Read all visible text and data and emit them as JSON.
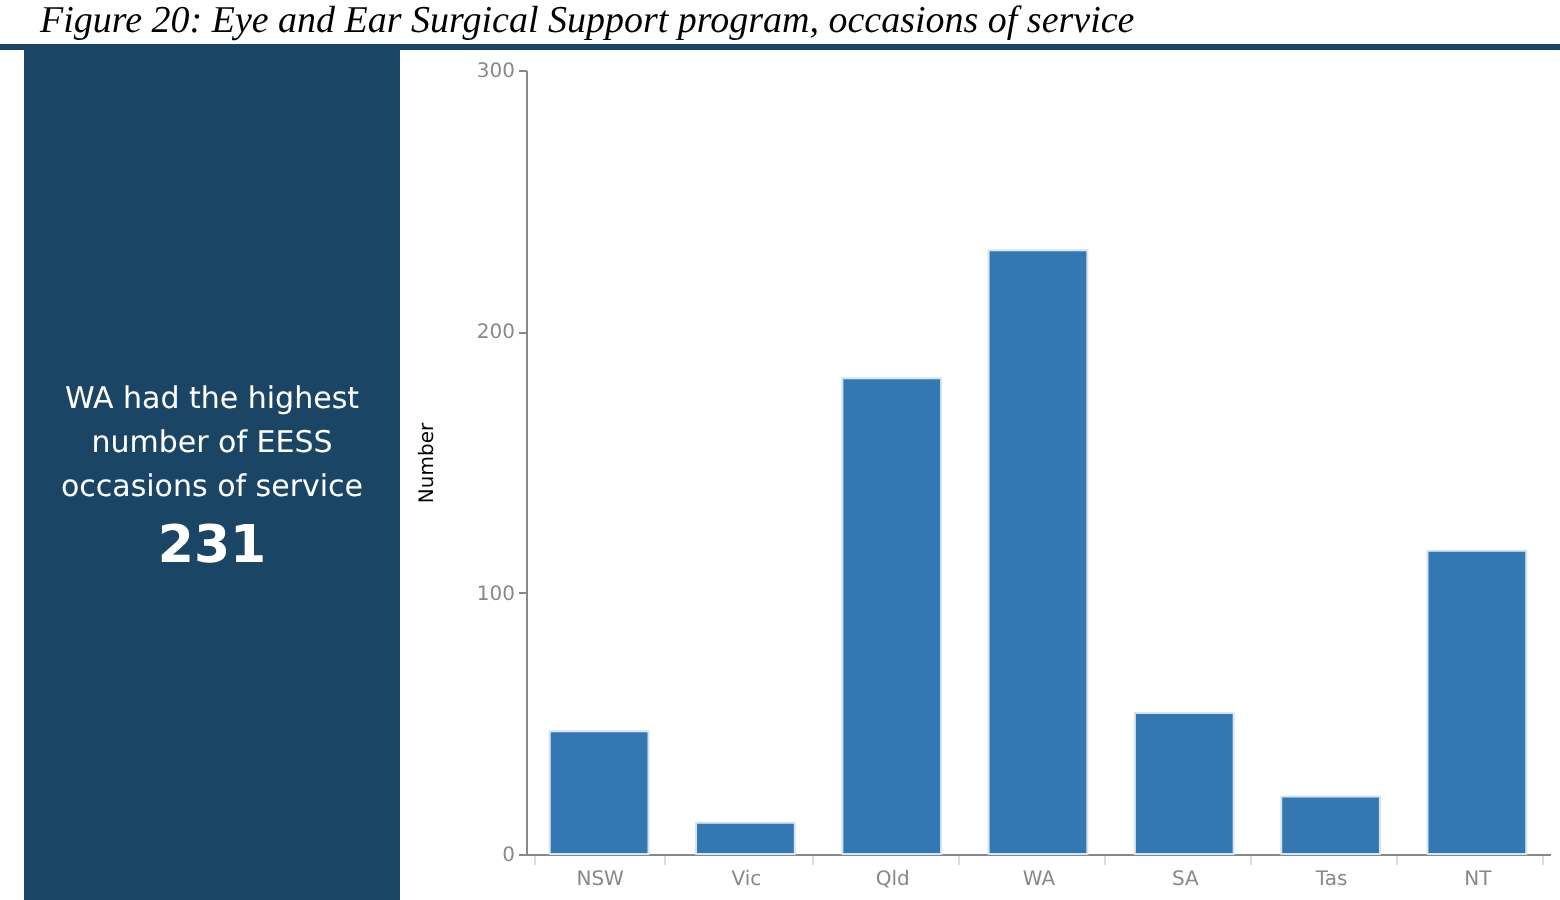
{
  "chart_data": {
    "type": "bar",
    "title": "Figure 20: Eye and Ear Surgical Support program, occasions of service",
    "ylabel": "Number",
    "categories": [
      "NSW",
      "Vic",
      "Qld",
      "WA",
      "SA",
      "Tas",
      "NT"
    ],
    "values": [
      47,
      12,
      182,
      231,
      54,
      22,
      116
    ],
    "color": "#3478b3",
    "ylim": [
      0,
      300
    ],
    "yticks": [
      0,
      100,
      200,
      300
    ],
    "grid": false,
    "annotations": [
      "WA had the highest number of EESS occasions of service",
      "231"
    ]
  }
}
